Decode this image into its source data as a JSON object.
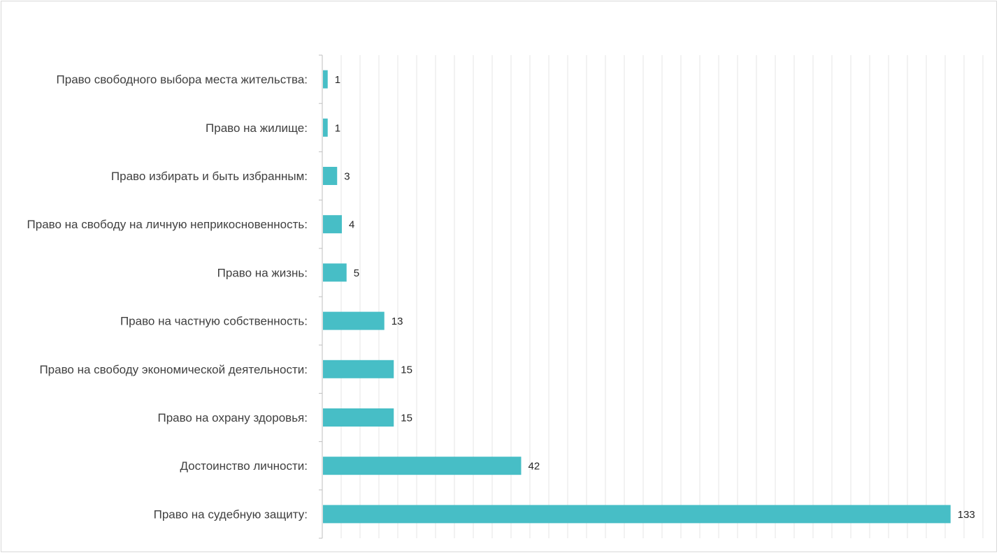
{
  "colors": {
    "bar": "#47bec6",
    "grid": "#e6e6e6",
    "axis": "#bfbfbf",
    "label": "#404040",
    "value_label": "#262626"
  },
  "chart_data": {
    "type": "bar",
    "orientation": "horizontal",
    "title": "",
    "xlabel": "",
    "ylabel": "",
    "categories": [
      "Право свободного выбора места жительства:",
      "Право на жилище:",
      "Право избирать и быть избранным:",
      "Право на свободу на личную неприкосновенность:",
      "Право на жизнь:",
      "Право на частную собственность:",
      "Право на свободу экономической деятельности:",
      "Право на охрану здоровья:",
      "Достоинство личности:",
      "Право на судебную защиту:"
    ],
    "values": [
      1,
      1,
      3,
      4,
      5,
      13,
      15,
      15,
      42,
      133
    ],
    "xlim": [
      0,
      140
    ],
    "grid": true,
    "legend": "none",
    "data_labels": true
  }
}
